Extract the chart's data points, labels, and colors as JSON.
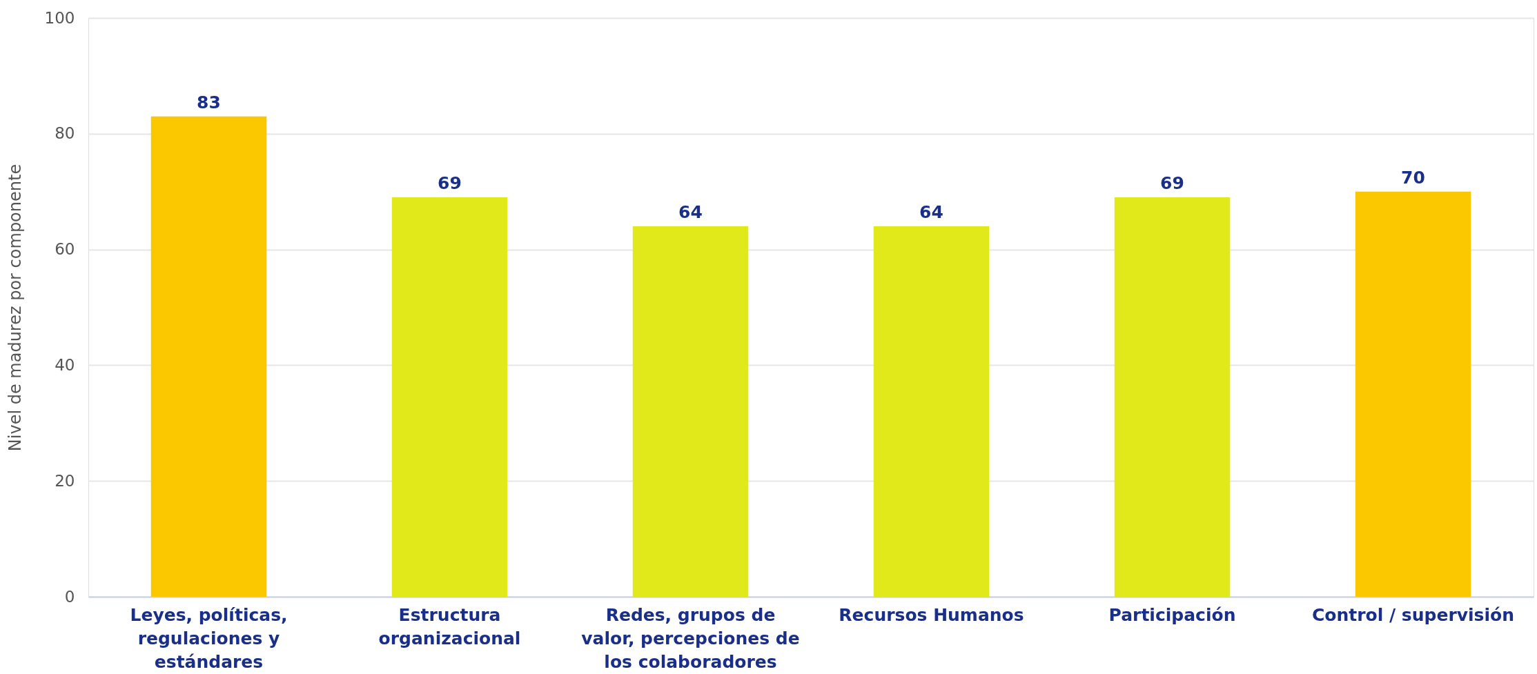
{
  "chart_data": {
    "type": "bar",
    "ylabel": "Nivel de madurez por componente",
    "categories": [
      "Leyes, políticas, regulaciones y estándares",
      "Estructura organizacional",
      "Redes, grupos de valor, percepciones de los colaboradores",
      "Recursos Humanos",
      "Participación",
      "Control / supervisión"
    ],
    "values": [
      83,
      69,
      64,
      64,
      69,
      70
    ],
    "colors": [
      "#fbc800",
      "#e2e91b",
      "#e2e91b",
      "#e2e91b",
      "#e2e91b",
      "#fbc800"
    ],
    "ylim": [
      0,
      100
    ],
    "yticks": [
      0,
      20,
      40,
      60,
      80,
      100
    ],
    "grid": "y",
    "data_labels": true
  }
}
